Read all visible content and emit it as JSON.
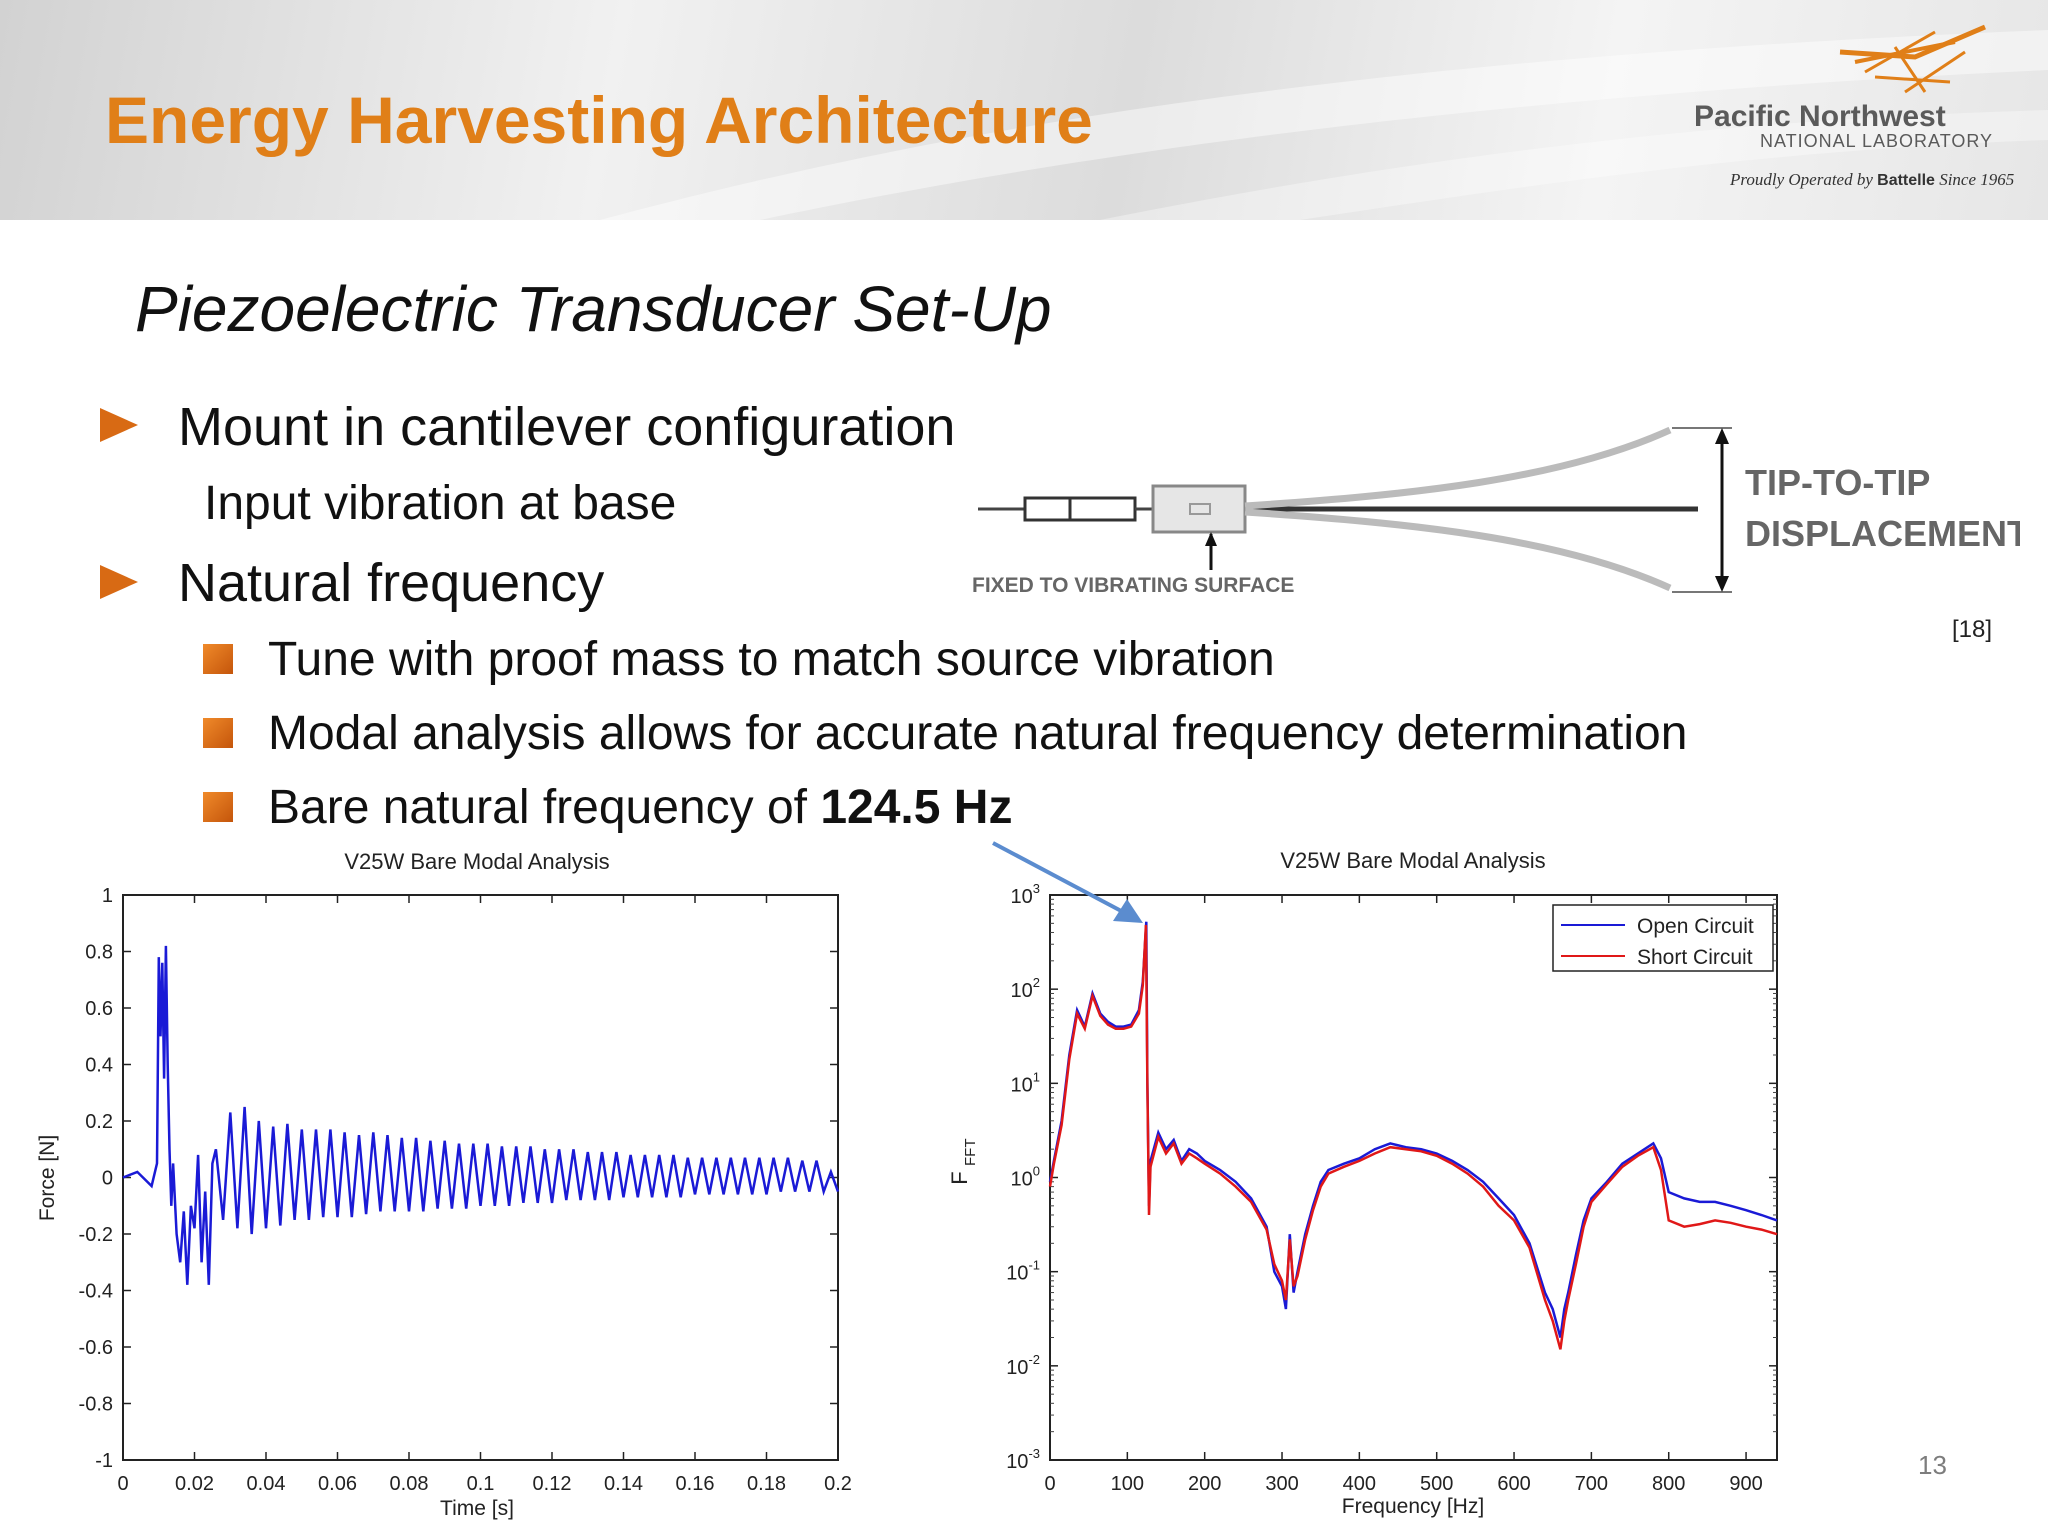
{
  "header": {
    "title": "Energy Harvesting Architecture",
    "logo_name": "Pacific Northwest",
    "logo_sub": "NATIONAL LABORATORY",
    "tag_prefix": "Proudly Operated by",
    "tag_brand": "Battelle",
    "tag_suffix": "Since 1965"
  },
  "slide": {
    "subtitle": "Piezoelectric Transducer Set-Up",
    "bullets": [
      {
        "text": "Mount in cantilever configuration",
        "sub": "Input vibration at base"
      },
      {
        "text": "Natural frequency"
      }
    ],
    "subbullets": [
      {
        "text": "Tune with proof mass to match source vibration"
      },
      {
        "text": "Modal analysis allows for accurate natural frequency determination"
      },
      {
        "text": "Bare natural frequency of ",
        "bold": "124.5 Hz"
      }
    ],
    "reference": "[18]",
    "page_number": "13"
  },
  "diagram": {
    "fixed_label": "FIXED TO VIBRATING SURFACE",
    "disp_label_1": "TIP-TO-TIP",
    "disp_label_2": "DISPLACEMENT"
  },
  "colors": {
    "accent": "#e07f18",
    "bullet": "#d86a14",
    "series_blue": "#1a1ad6",
    "series_red": "#e01818"
  },
  "chart_data": [
    {
      "type": "line",
      "title": "V25W Bare Modal Analysis",
      "xlabel": "Time [s]",
      "ylabel": "Force [N]",
      "xlim": [
        0,
        0.2
      ],
      "ylim": [
        -1,
        1
      ],
      "xticks": [
        "0",
        "0.02",
        "0.04",
        "0.06",
        "0.08",
        "0.1",
        "0.12",
        "0.14",
        "0.16",
        "0.18",
        "0.2"
      ],
      "yticks": [
        "1",
        "0.8",
        "0.6",
        "0.4",
        "0.2",
        "0",
        "-0.2",
        "-0.4",
        "-0.6",
        "-0.8",
        "-1"
      ],
      "series": [
        {
          "x": [
            0,
            0.004,
            0.008,
            0.0095,
            0.01,
            0.0105,
            0.011,
            0.0115,
            0.012,
            0.0125,
            0.013,
            0.0135,
            0.014,
            0.015,
            0.016,
            0.017,
            0.018,
            0.019,
            0.02,
            0.021,
            0.022,
            0.023,
            0.024,
            0.025,
            0.026,
            0.028,
            0.03,
            0.032,
            0.034,
            0.036,
            0.038,
            0.04,
            0.042,
            0.044,
            0.046,
            0.048,
            0.05,
            0.052,
            0.054,
            0.056,
            0.058,
            0.06,
            0.062,
            0.064,
            0.066,
            0.068,
            0.07,
            0.072,
            0.074,
            0.076,
            0.078,
            0.08,
            0.082,
            0.084,
            0.086,
            0.088,
            0.09,
            0.092,
            0.094,
            0.096,
            0.098,
            0.1,
            0.102,
            0.104,
            0.106,
            0.108,
            0.11,
            0.112,
            0.114,
            0.116,
            0.118,
            0.12,
            0.122,
            0.124,
            0.126,
            0.128,
            0.13,
            0.132,
            0.134,
            0.136,
            0.138,
            0.14,
            0.142,
            0.144,
            0.146,
            0.148,
            0.15,
            0.152,
            0.154,
            0.156,
            0.158,
            0.16,
            0.162,
            0.164,
            0.166,
            0.168,
            0.17,
            0.172,
            0.174,
            0.176,
            0.178,
            0.18,
            0.182,
            0.184,
            0.186,
            0.188,
            0.19,
            0.192,
            0.194,
            0.196,
            0.198,
            0.2
          ],
          "y": [
            0,
            0.02,
            -0.03,
            0.05,
            0.78,
            0.5,
            0.76,
            0.35,
            0.82,
            0.4,
            0.1,
            -0.1,
            0.05,
            -0.2,
            -0.3,
            -0.12,
            -0.38,
            -0.1,
            -0.18,
            0.08,
            -0.3,
            -0.05,
            -0.38,
            0.05,
            0.1,
            -0.15,
            0.23,
            -0.18,
            0.25,
            -0.2,
            0.2,
            -0.18,
            0.18,
            -0.17,
            0.19,
            -0.15,
            0.17,
            -0.15,
            0.17,
            -0.14,
            0.17,
            -0.14,
            0.16,
            -0.14,
            0.15,
            -0.13,
            0.16,
            -0.12,
            0.15,
            -0.12,
            0.14,
            -0.12,
            0.14,
            -0.12,
            0.13,
            -0.11,
            0.13,
            -0.11,
            0.12,
            -0.11,
            0.12,
            -0.1,
            0.12,
            -0.1,
            0.11,
            -0.1,
            0.11,
            -0.09,
            0.11,
            -0.09,
            0.1,
            -0.09,
            0.1,
            -0.08,
            0.1,
            -0.08,
            0.09,
            -0.08,
            0.09,
            -0.08,
            0.09,
            -0.07,
            0.08,
            -0.07,
            0.08,
            -0.07,
            0.08,
            -0.07,
            0.08,
            -0.07,
            0.07,
            -0.06,
            0.07,
            -0.06,
            0.07,
            -0.06,
            0.07,
            -0.06,
            0.07,
            -0.06,
            0.07,
            -0.06,
            0.07,
            -0.05,
            0.07,
            -0.05,
            0.06,
            -0.05,
            0.06,
            -0.05,
            0.02,
            -0.05
          ]
        }
      ]
    },
    {
      "type": "line",
      "title": "V25W Bare Modal Analysis",
      "xlabel": "Frequency [Hz]",
      "ylabel": "F",
      "ylabel_sub": "FFT",
      "xlim": [
        0,
        940
      ],
      "ylim": [
        0.001,
        1000
      ],
      "yscale": "log",
      "xticks": [
        "0",
        "100",
        "200",
        "300",
        "400",
        "500",
        "600",
        "700",
        "800",
        "900"
      ],
      "ytick_exponents": [
        "3",
        "2",
        "1",
        "0",
        "-1",
        "-2",
        "-3"
      ],
      "ytick_base": "10",
      "legend_position": "top-right",
      "series": [
        {
          "name": "Open Circuit",
          "x": [
            0,
            5,
            15,
            25,
            35,
            45,
            55,
            65,
            75,
            85,
            95,
            105,
            115,
            120,
            124.5,
            126,
            128,
            130,
            140,
            150,
            160,
            170,
            180,
            190,
            200,
            220,
            240,
            260,
            280,
            290,
            300,
            305,
            310,
            315,
            320,
            330,
            340,
            350,
            360,
            380,
            400,
            420,
            440,
            460,
            480,
            500,
            520,
            540,
            560,
            580,
            600,
            620,
            640,
            650,
            660,
            665,
            670,
            680,
            690,
            700,
            720,
            740,
            760,
            780,
            790,
            800,
            820,
            840,
            860,
            880,
            900,
            920,
            940
          ],
          "y": [
            0.9,
            1.5,
            4,
            20,
            60,
            40,
            90,
            55,
            45,
            40,
            40,
            42,
            60,
            120,
            520,
            10,
            0.5,
            1.5,
            3,
            2,
            2.5,
            1.5,
            2,
            1.8,
            1.5,
            1.2,
            0.9,
            0.6,
            0.3,
            0.1,
            0.07,
            0.04,
            0.25,
            0.06,
            0.1,
            0.25,
            0.5,
            0.9,
            1.2,
            1.4,
            1.6,
            2,
            2.3,
            2.1,
            2,
            1.8,
            1.5,
            1.2,
            0.9,
            0.6,
            0.4,
            0.2,
            0.06,
            0.04,
            0.02,
            0.04,
            0.06,
            0.15,
            0.35,
            0.6,
            0.9,
            1.4,
            1.8,
            2.3,
            1.6,
            0.7,
            0.6,
            0.55,
            0.55,
            0.5,
            0.45,
            0.4,
            0.35
          ]
        },
        {
          "name": "Short Circuit",
          "x": [
            0,
            5,
            15,
            25,
            35,
            45,
            55,
            65,
            75,
            85,
            95,
            105,
            115,
            120,
            124,
            126,
            128,
            130,
            140,
            150,
            160,
            170,
            180,
            190,
            200,
            220,
            240,
            260,
            280,
            290,
            300,
            305,
            310,
            315,
            320,
            330,
            340,
            350,
            360,
            380,
            400,
            420,
            440,
            460,
            480,
            500,
            520,
            540,
            560,
            580,
            600,
            620,
            640,
            650,
            660,
            665,
            670,
            680,
            690,
            700,
            720,
            740,
            760,
            780,
            790,
            800,
            820,
            840,
            860,
            880,
            900,
            920,
            940
          ],
          "y": [
            0.8,
            1.4,
            3.6,
            18,
            55,
            38,
            85,
            52,
            42,
            38,
            38,
            40,
            55,
            110,
            480,
            9,
            0.4,
            1.3,
            2.7,
            1.8,
            2.3,
            1.4,
            1.8,
            1.6,
            1.4,
            1.1,
            0.8,
            0.55,
            0.28,
            0.12,
            0.08,
            0.05,
            0.22,
            0.07,
            0.09,
            0.22,
            0.45,
            0.8,
            1.1,
            1.3,
            1.5,
            1.8,
            2.1,
            2,
            1.9,
            1.7,
            1.4,
            1.1,
            0.8,
            0.5,
            0.35,
            0.18,
            0.05,
            0.03,
            0.015,
            0.03,
            0.05,
            0.12,
            0.3,
            0.55,
            0.85,
            1.3,
            1.7,
            2.1,
            1.2,
            0.35,
            0.3,
            0.32,
            0.35,
            0.33,
            0.3,
            0.28,
            0.25
          ]
        }
      ]
    }
  ]
}
